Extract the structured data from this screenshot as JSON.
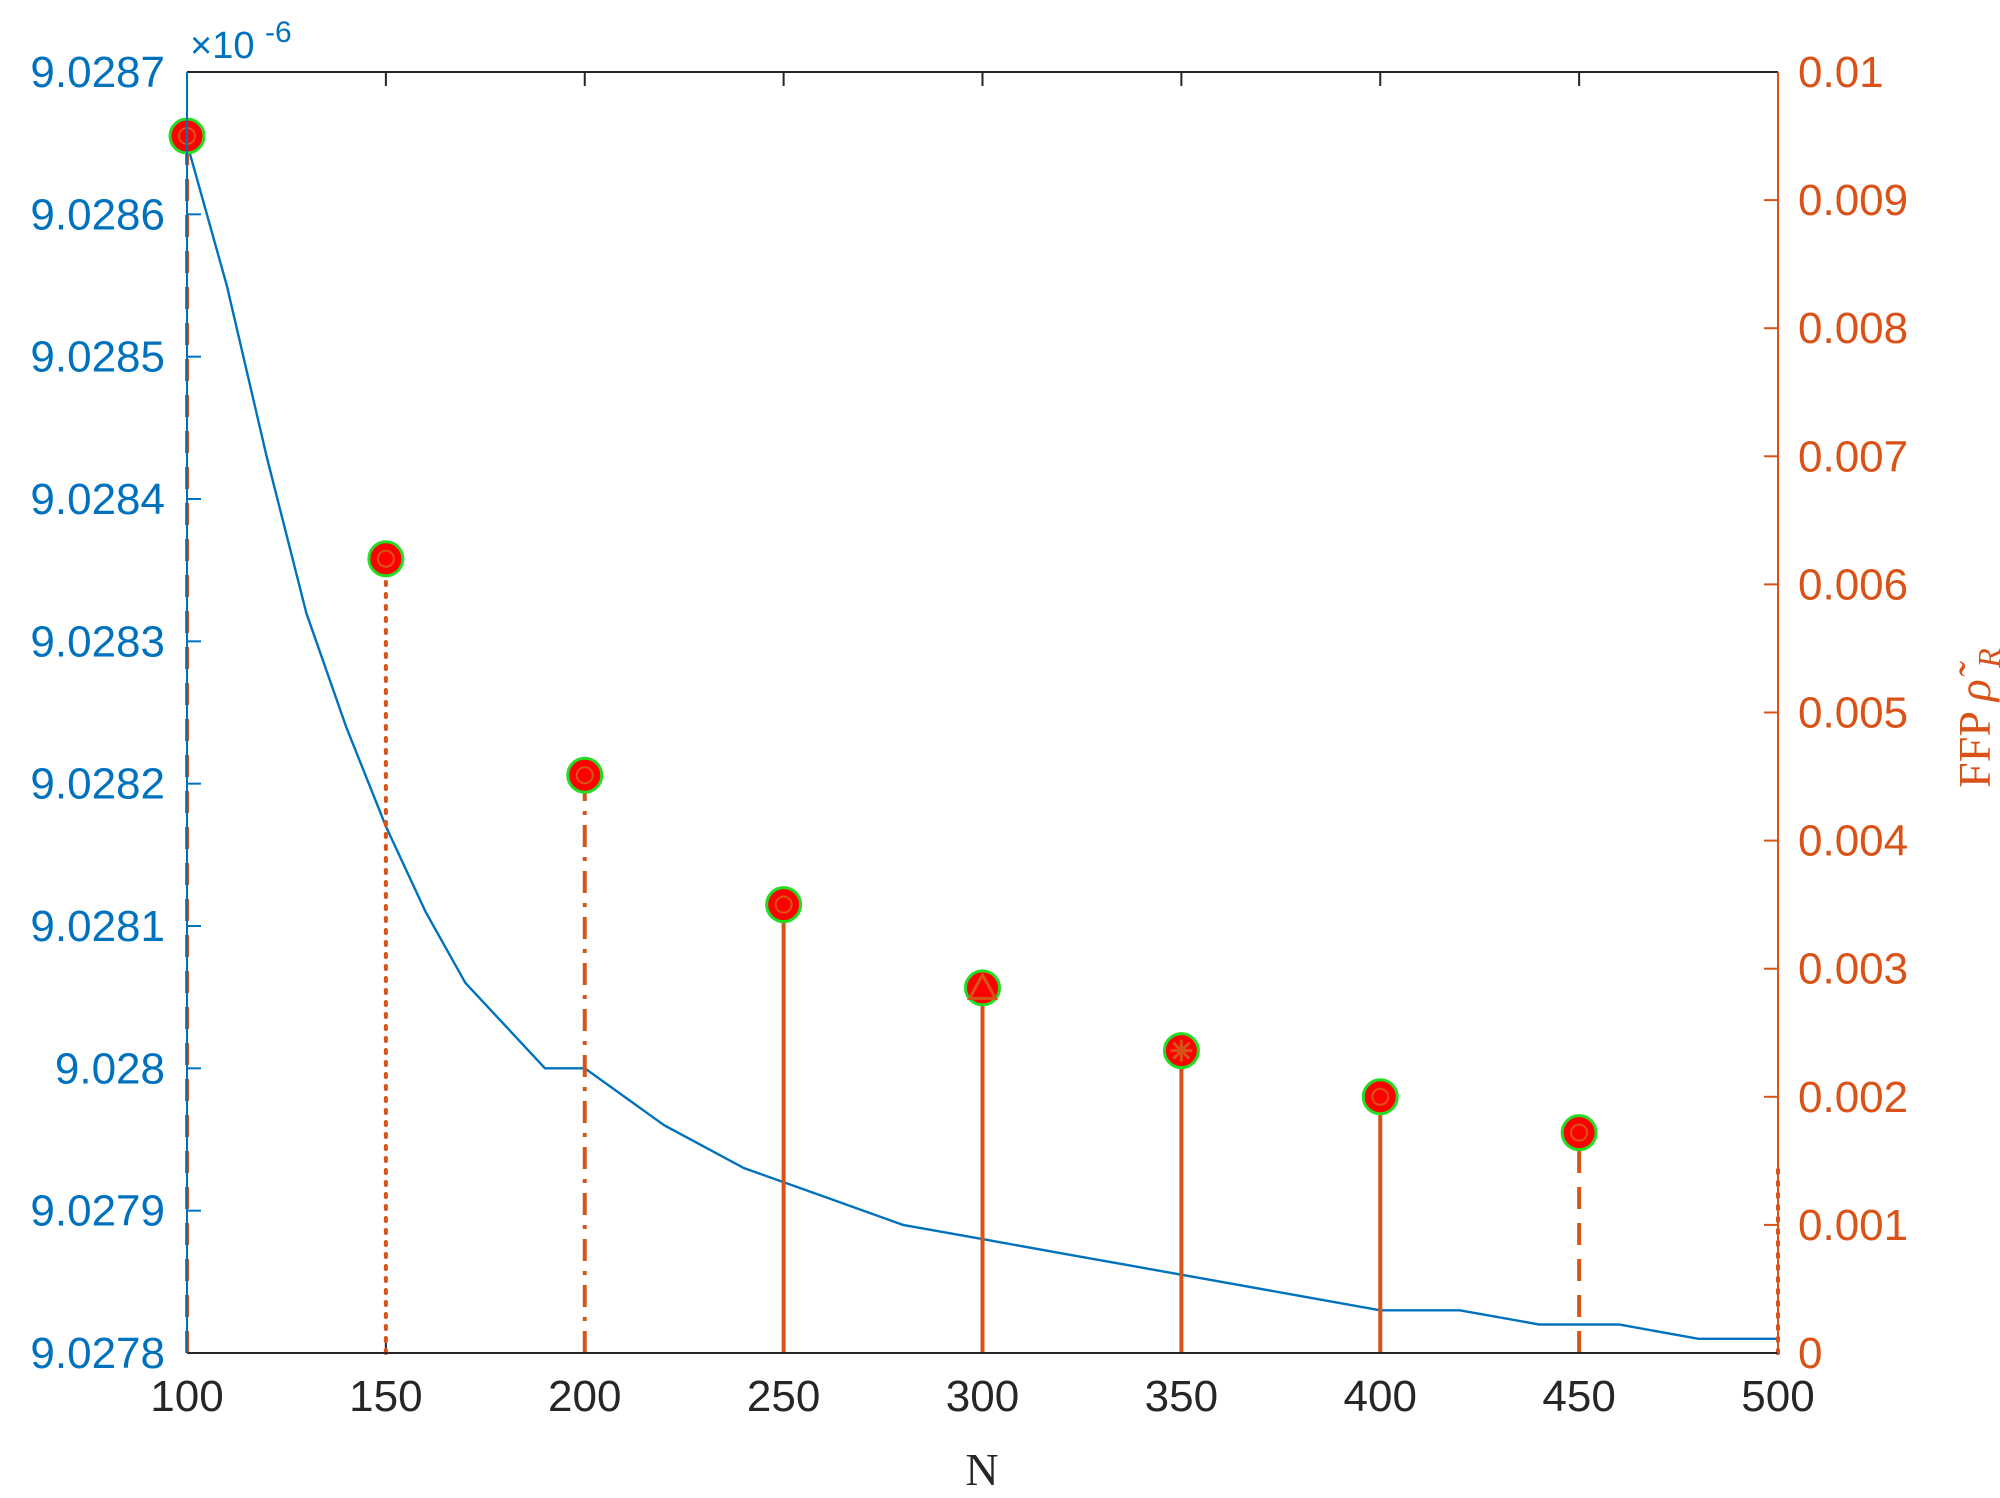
{
  "colors": {
    "left_axis": "#0072BD",
    "right_axis": "#D95319",
    "bottom_axis": "#262626",
    "curve": "#0072BD",
    "stem": "#D95319",
    "marker_fill": "#FF0000",
    "marker_edge": "#22DD22"
  },
  "chart_data": {
    "type": "line",
    "xlabel": "N",
    "x_ticks": [
      "100",
      "150",
      "200",
      "250",
      "300",
      "350",
      "400",
      "450",
      "500"
    ],
    "xlim": [
      100,
      500
    ],
    "left_axis": {
      "exponent_label_prefix": "×10",
      "exponent_label_power": "-6",
      "ylim": [
        9.0278,
        9.0287
      ],
      "tick_values": [
        9.0278,
        9.0279,
        9.028,
        9.0281,
        9.0282,
        9.0283,
        9.0284,
        9.0285,
        9.0286,
        9.0287
      ],
      "tick_labels": [
        "9.0278",
        "9.0279",
        "9.028",
        "9.0281",
        "9.0282",
        "9.0283",
        "9.0284",
        "9.0285",
        "9.0286",
        "9.0287"
      ]
    },
    "right_axis": {
      "label_text": "FFP",
      "label_symbol": "ρ̃",
      "label_subscript": "R",
      "ylim": [
        0,
        0.01
      ],
      "tick_values": [
        0,
        0.001,
        0.002,
        0.003,
        0.004,
        0.005,
        0.006,
        0.007,
        0.008,
        0.009,
        0.01
      ],
      "tick_labels": [
        "0",
        "0.001",
        "0.002",
        "0.003",
        "0.004",
        "0.005",
        "0.006",
        "0.007",
        "0.008",
        "0.009",
        "0.01"
      ]
    },
    "curve": {
      "axis": "left",
      "x": [
        100,
        110,
        120,
        130,
        140,
        150,
        160,
        170,
        180,
        190,
        200,
        220,
        240,
        260,
        280,
        300,
        320,
        340,
        360,
        380,
        400,
        420,
        440,
        460,
        480,
        500
      ],
      "y": [
        9.02865,
        9.02855,
        9.02843,
        9.02832,
        9.02824,
        9.02817,
        9.02811,
        9.02806,
        9.02803,
        9.028,
        9.028,
        9.02796,
        9.02793,
        9.02791,
        9.02789,
        9.02788,
        9.02787,
        9.02786,
        9.02785,
        9.02784,
        9.02783,
        9.02783,
        9.02782,
        9.02782,
        9.02781,
        9.02781
      ]
    },
    "stems": {
      "axis": "right",
      "points": [
        {
          "x": 100,
          "y": 0.0095,
          "style": "dashed",
          "marker": "circle"
        },
        {
          "x": 150,
          "y": 0.0062,
          "style": "dotted",
          "marker": "circle"
        },
        {
          "x": 200,
          "y": 0.00451,
          "style": "dashdot",
          "marker": "circle"
        },
        {
          "x": 250,
          "y": 0.0035,
          "style": "solid",
          "marker": "circle"
        },
        {
          "x": 300,
          "y": 0.00285,
          "style": "solid",
          "marker": "triangle"
        },
        {
          "x": 350,
          "y": 0.00236,
          "style": "solid",
          "marker": "asterisk"
        },
        {
          "x": 400,
          "y": 0.002,
          "style": "solid",
          "marker": "circle"
        },
        {
          "x": 450,
          "y": 0.00172,
          "style": "dashed",
          "marker": "circle"
        },
        {
          "x": 500,
          "y": 0.00143,
          "style": "dotted",
          "marker": "none"
        }
      ]
    }
  }
}
